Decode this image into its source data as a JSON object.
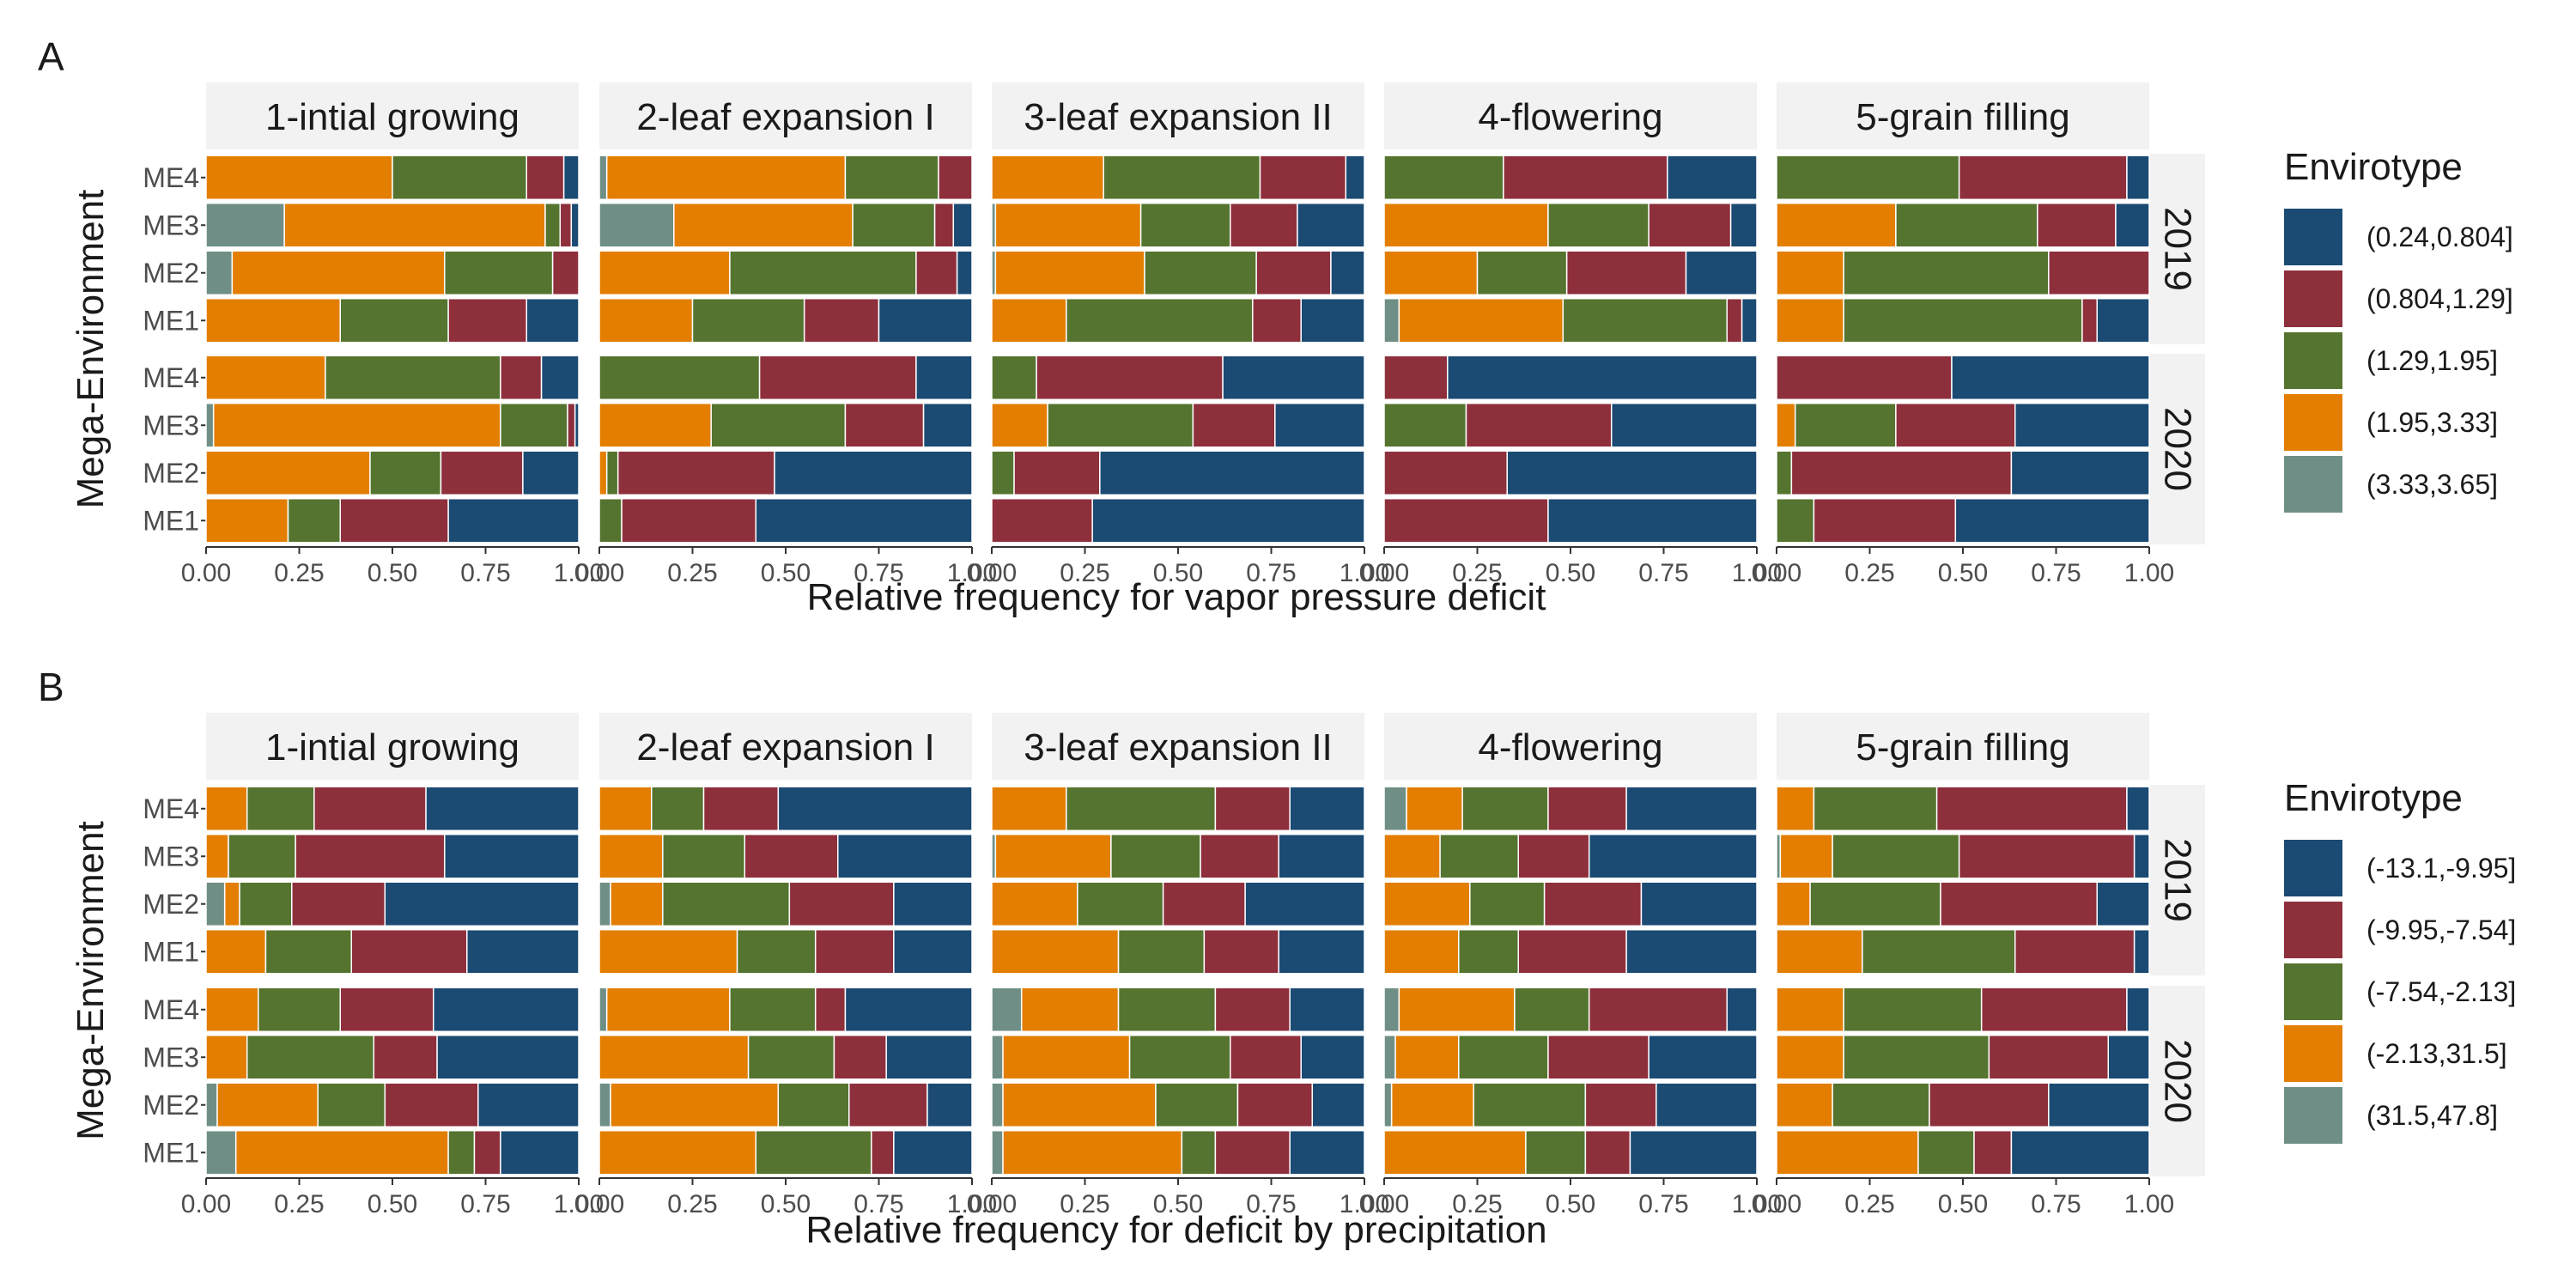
{
  "colors": {
    "strip_bg": "#f2f2f2",
    "axis_text": "#4d4d4d",
    "text": "#1a1a1a",
    "bar_outline": "#ffffff"
  },
  "chart_data": [
    {
      "type": "bar",
      "orientation": "horizontal",
      "stacked": true,
      "panel_label": "A",
      "xlabel": "Relative frequency for vapor pressure deficit",
      "ylabel": "Mega-Environment",
      "xlim": [
        0,
        1
      ],
      "x_ticks": [
        "0.00",
        "0.25",
        "0.50",
        "0.75",
        "1.00"
      ],
      "stages": [
        "1-intial growing",
        "2-leaf expansion I",
        "3-leaf expansion II",
        "4-flowering",
        "5-grain filling"
      ],
      "years": [
        "2019",
        "2020"
      ],
      "environments": [
        "ME4",
        "ME3",
        "ME2",
        "ME1"
      ],
      "legend": {
        "title": "Envirotype",
        "position": "right",
        "entries": [
          {
            "label": "(0.24,0.804]",
            "color": "#1b4a73"
          },
          {
            "label": "(0.804,1.29]",
            "color": "#8e2f3c"
          },
          {
            "label": "(1.29,1.95]",
            "color": "#55742f"
          },
          {
            "label": "(1.95,3.33]",
            "color": "#e37e00"
          },
          {
            "label": "(3.33,3.65]",
            "color": "#6f8f86"
          }
        ]
      },
      "series_order_left_to_right": [
        "(3.33,3.65]",
        "(1.95,3.33]",
        "(1.29,1.95]",
        "(0.804,1.29]",
        "(0.24,0.804]"
      ],
      "data": {
        "2019": {
          "1-intial growing": {
            "ME4": [
              0,
              0.5,
              0.36,
              0.1,
              0.04
            ],
            "ME3": [
              0.21,
              0.7,
              0.04,
              0.03,
              0.02
            ],
            "ME2": [
              0.07,
              0.57,
              0.29,
              0.07,
              0
            ],
            "ME1": [
              0,
              0.36,
              0.29,
              0.21,
              0.14
            ]
          },
          "2-leaf expansion I": {
            "ME4": [
              0.02,
              0.64,
              0.25,
              0.09,
              0
            ],
            "ME3": [
              0.2,
              0.48,
              0.22,
              0.05,
              0.05
            ],
            "ME2": [
              0,
              0.35,
              0.5,
              0.11,
              0.04
            ],
            "ME1": [
              0,
              0.25,
              0.3,
              0.2,
              0.25
            ]
          },
          "3-leaf expansion II": {
            "ME4": [
              0,
              0.3,
              0.42,
              0.23,
              0.05
            ],
            "ME3": [
              0.01,
              0.39,
              0.24,
              0.18,
              0.18
            ],
            "ME2": [
              0.01,
              0.4,
              0.3,
              0.2,
              0.09
            ],
            "ME1": [
              0,
              0.2,
              0.5,
              0.13,
              0.17
            ]
          },
          "4-flowering": {
            "ME4": [
              0,
              0,
              0.32,
              0.44,
              0.24
            ],
            "ME3": [
              0,
              0.44,
              0.27,
              0.22,
              0.07
            ],
            "ME2": [
              0,
              0.25,
              0.24,
              0.32,
              0.19
            ],
            "ME1": [
              0.04,
              0.44,
              0.44,
              0.04,
              0.04
            ]
          },
          "5-grain filling": {
            "ME4": [
              0,
              0,
              0.49,
              0.45,
              0.06
            ],
            "ME3": [
              0,
              0.32,
              0.38,
              0.21,
              0.09
            ],
            "ME2": [
              0,
              0.18,
              0.55,
              0.27,
              0
            ],
            "ME1": [
              0,
              0.18,
              0.64,
              0.04,
              0.14
            ]
          }
        },
        "2020": {
          "1-intial growing": {
            "ME4": [
              0,
              0.32,
              0.47,
              0.11,
              0.1
            ],
            "ME3": [
              0.02,
              0.77,
              0.18,
              0.02,
              0.01
            ],
            "ME2": [
              0,
              0.44,
              0.19,
              0.22,
              0.15
            ],
            "ME1": [
              0,
              0.22,
              0.14,
              0.29,
              0.35
            ]
          },
          "2-leaf expansion I": {
            "ME4": [
              0,
              0,
              0.43,
              0.42,
              0.15
            ],
            "ME3": [
              0,
              0.3,
              0.36,
              0.21,
              0.13
            ],
            "ME2": [
              0,
              0.02,
              0.03,
              0.42,
              0.53
            ],
            "ME1": [
              0,
              0,
              0.06,
              0.36,
              0.58
            ]
          },
          "3-leaf expansion II": {
            "ME4": [
              0,
              0,
              0.12,
              0.5,
              0.38
            ],
            "ME3": [
              0,
              0.15,
              0.39,
              0.22,
              0.24
            ],
            "ME2": [
              0,
              0,
              0.06,
              0.23,
              0.71
            ],
            "ME1": [
              0,
              0,
              0,
              0.27,
              0.73
            ]
          },
          "4-flowering": {
            "ME4": [
              0,
              0,
              0,
              0.17,
              0.83
            ],
            "ME3": [
              0,
              0,
              0.22,
              0.39,
              0.39
            ],
            "ME2": [
              0,
              0,
              0,
              0.33,
              0.67
            ],
            "ME1": [
              0,
              0,
              0,
              0.44,
              0.56
            ]
          },
          "5-grain filling": {
            "ME4": [
              0,
              0,
              0,
              0.47,
              0.53
            ],
            "ME3": [
              0,
              0.05,
              0.27,
              0.32,
              0.36
            ],
            "ME2": [
              0,
              0,
              0.04,
              0.59,
              0.37
            ],
            "ME1": [
              0,
              0,
              0.1,
              0.38,
              0.52
            ]
          }
        }
      }
    },
    {
      "type": "bar",
      "orientation": "horizontal",
      "stacked": true,
      "panel_label": "B",
      "xlabel": "Relative frequency for deficit by precipitation",
      "ylabel": "Mega-Environment",
      "xlim": [
        0,
        1
      ],
      "x_ticks": [
        "0.00",
        "0.25",
        "0.50",
        "0.75",
        "1.00"
      ],
      "stages": [
        "1-intial growing",
        "2-leaf expansion I",
        "3-leaf expansion II",
        "4-flowering",
        "5-grain filling"
      ],
      "years": [
        "2019",
        "2020"
      ],
      "environments": [
        "ME4",
        "ME3",
        "ME2",
        "ME1"
      ],
      "legend": {
        "title": "Envirotype",
        "position": "right",
        "entries": [
          {
            "label": "(-13.1,-9.95]",
            "color": "#1b4a73"
          },
          {
            "label": "(-9.95,-7.54]",
            "color": "#8e2f3c"
          },
          {
            "label": "(-7.54,-2.13]",
            "color": "#55742f"
          },
          {
            "label": "(-2.13,31.5]",
            "color": "#e37e00"
          },
          {
            "label": "(31.5,47.8]",
            "color": "#6f8f86"
          }
        ]
      },
      "series_order_left_to_right": [
        "(31.5,47.8]",
        "(-2.13,31.5]",
        "(-7.54,-2.13]",
        "(-9.95,-7.54]",
        "(-13.1,-9.95]"
      ],
      "data": {
        "2019": {
          "1-intial growing": {
            "ME4": [
              0,
              0.11,
              0.18,
              0.3,
              0.41
            ],
            "ME3": [
              0,
              0.06,
              0.18,
              0.4,
              0.36
            ],
            "ME2": [
              0.05,
              0.04,
              0.14,
              0.25,
              0.52
            ],
            "ME1": [
              0,
              0.16,
              0.23,
              0.31,
              0.3
            ]
          },
          "2-leaf expansion I": {
            "ME4": [
              0,
              0.14,
              0.14,
              0.2,
              0.52
            ],
            "ME3": [
              0,
              0.17,
              0.22,
              0.25,
              0.36
            ],
            "ME2": [
              0.03,
              0.14,
              0.34,
              0.28,
              0.21
            ],
            "ME1": [
              0,
              0.37,
              0.21,
              0.21,
              0.21
            ]
          },
          "3-leaf expansion II": {
            "ME4": [
              0,
              0.2,
              0.4,
              0.2,
              0.2
            ],
            "ME3": [
              0.01,
              0.31,
              0.24,
              0.21,
              0.23
            ],
            "ME2": [
              0,
              0.23,
              0.23,
              0.22,
              0.32
            ],
            "ME1": [
              0,
              0.34,
              0.23,
              0.2,
              0.23
            ]
          },
          "4-flowering": {
            "ME4": [
              0.06,
              0.15,
              0.23,
              0.21,
              0.35
            ],
            "ME3": [
              0,
              0.15,
              0.21,
              0.19,
              0.45
            ],
            "ME2": [
              0,
              0.23,
              0.2,
              0.26,
              0.31
            ],
            "ME1": [
              0,
              0.2,
              0.16,
              0.29,
              0.35
            ]
          },
          "5-grain filling": {
            "ME4": [
              0,
              0.1,
              0.33,
              0.51,
              0.06
            ],
            "ME3": [
              0.01,
              0.14,
              0.34,
              0.47,
              0.04
            ],
            "ME2": [
              0,
              0.09,
              0.35,
              0.42,
              0.14
            ],
            "ME1": [
              0,
              0.23,
              0.41,
              0.32,
              0.04
            ]
          }
        },
        "2020": {
          "1-intial growing": {
            "ME4": [
              0,
              0.14,
              0.22,
              0.25,
              0.39
            ],
            "ME3": [
              0,
              0.11,
              0.34,
              0.17,
              0.38
            ],
            "ME2": [
              0.03,
              0.27,
              0.18,
              0.25,
              0.27
            ],
            "ME1": [
              0.08,
              0.57,
              0.07,
              0.07,
              0.21
            ]
          },
          "2-leaf expansion I": {
            "ME4": [
              0.02,
              0.33,
              0.23,
              0.08,
              0.34
            ],
            "ME3": [
              0,
              0.4,
              0.23,
              0.14,
              0.23
            ],
            "ME2": [
              0.03,
              0.45,
              0.19,
              0.21,
              0.12
            ],
            "ME1": [
              0,
              0.42,
              0.31,
              0.06,
              0.21
            ]
          },
          "3-leaf expansion II": {
            "ME4": [
              0.08,
              0.26,
              0.26,
              0.2,
              0.2
            ],
            "ME3": [
              0.03,
              0.34,
              0.27,
              0.19,
              0.17
            ],
            "ME2": [
              0.03,
              0.41,
              0.22,
              0.2,
              0.14
            ],
            "ME1": [
              0.03,
              0.48,
              0.09,
              0.2,
              0.2
            ]
          },
          "4-flowering": {
            "ME4": [
              0.04,
              0.31,
              0.2,
              0.37,
              0.08
            ],
            "ME3": [
              0.03,
              0.17,
              0.24,
              0.27,
              0.29
            ],
            "ME2": [
              0.02,
              0.22,
              0.3,
              0.19,
              0.27
            ],
            "ME1": [
              0,
              0.38,
              0.16,
              0.12,
              0.34
            ]
          },
          "5-grain filling": {
            "ME4": [
              0,
              0.18,
              0.37,
              0.39,
              0.06
            ],
            "ME3": [
              0,
              0.18,
              0.39,
              0.32,
              0.11
            ],
            "ME2": [
              0,
              0.15,
              0.26,
              0.32,
              0.27
            ],
            "ME1": [
              0,
              0.38,
              0.15,
              0.1,
              0.37
            ]
          }
        }
      }
    }
  ]
}
